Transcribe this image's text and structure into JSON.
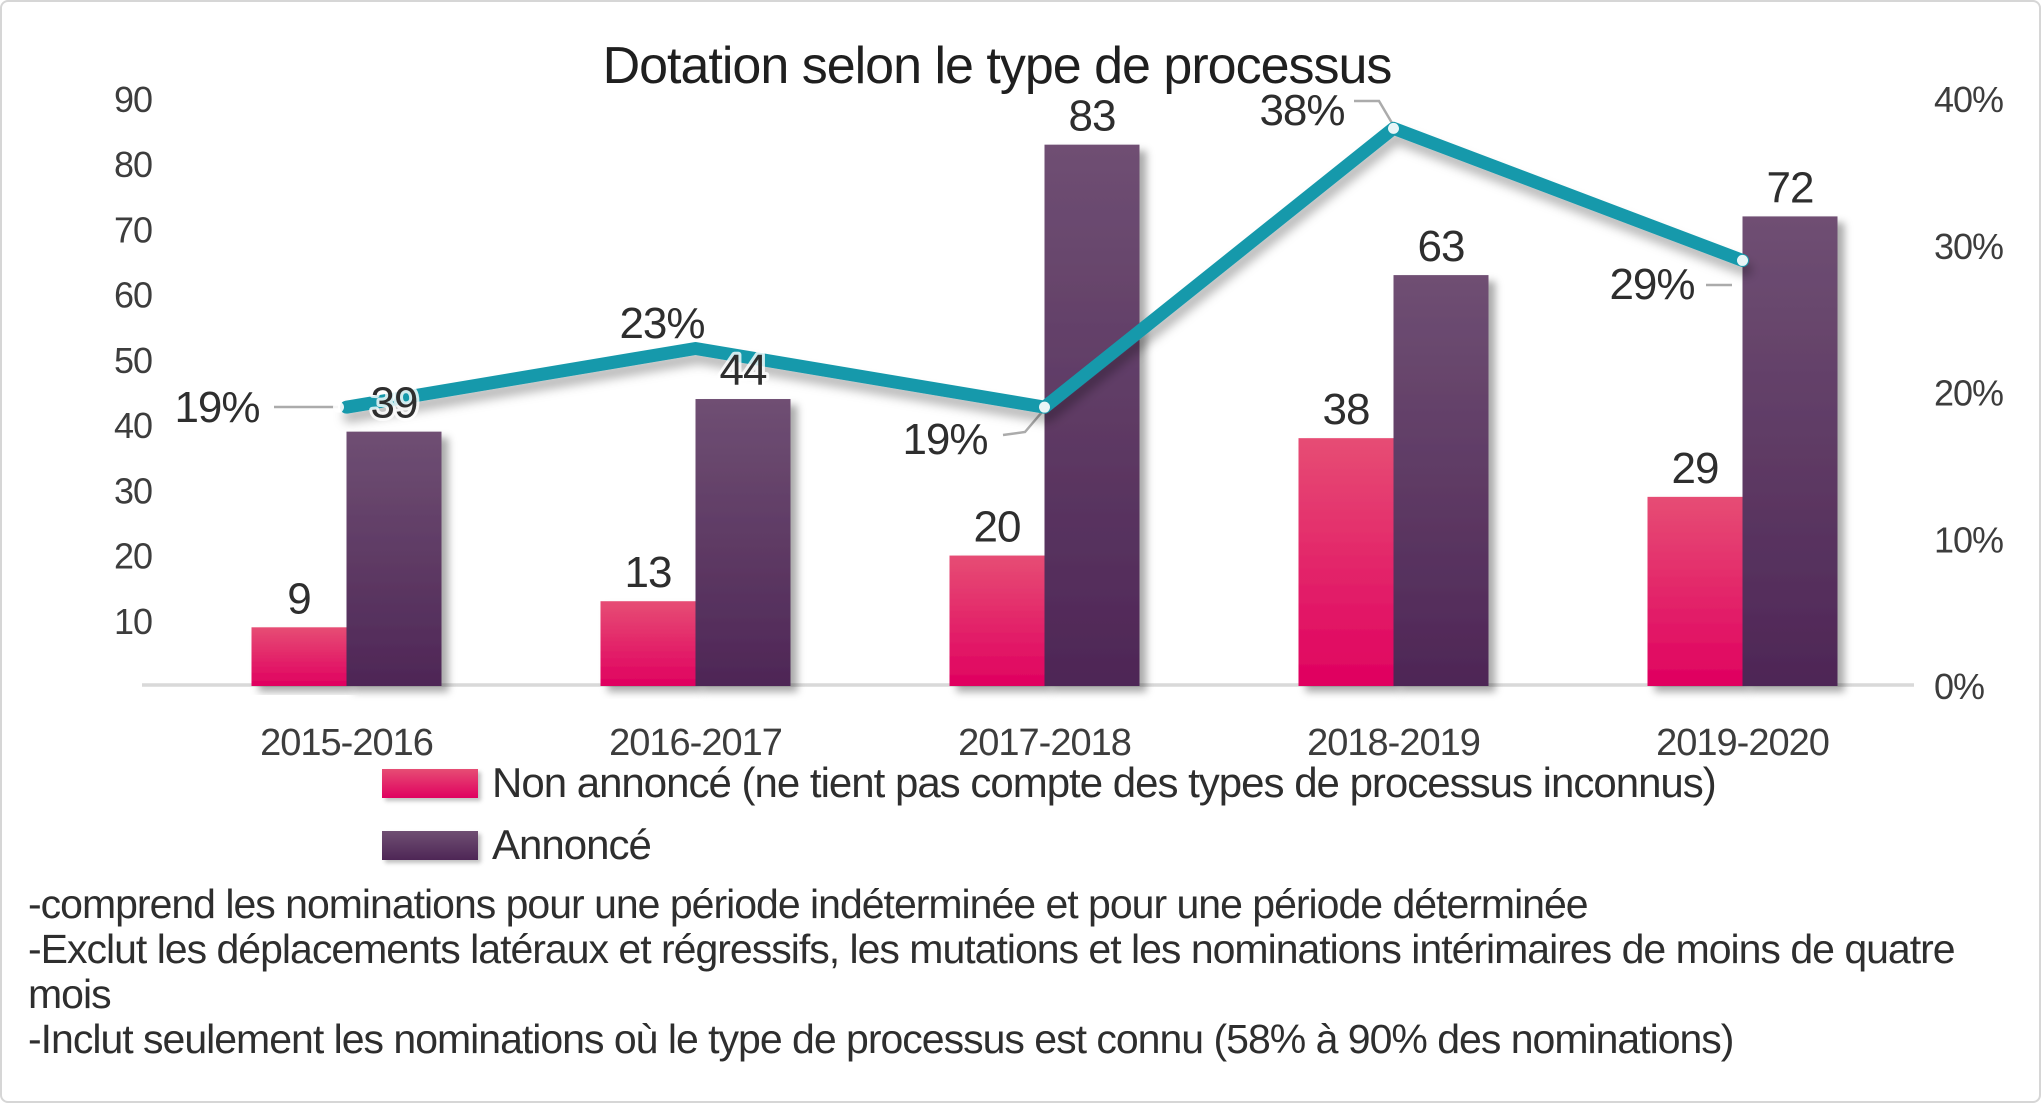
{
  "chart_data": {
    "type": "combo-bar-line",
    "title": "Dotation selon le type de processus",
    "categories": [
      "2015-2016",
      "2016-2017",
      "2017-2018",
      "2018-2019",
      "2019-2020"
    ],
    "series": [
      {
        "type": "bar",
        "axis": "left",
        "name": "Non annoncé (ne tient pas compte des types de processus inconnus)",
        "values": [
          9,
          13,
          20,
          38,
          29
        ],
        "data_labels": [
          "9",
          "13",
          "20",
          "38",
          "29"
        ],
        "color_top": "#E64D74",
        "color_bottom": "#E00060"
      },
      {
        "type": "bar",
        "axis": "left",
        "name": "Annoncé",
        "values": [
          39,
          44,
          83,
          63,
          72
        ],
        "data_labels": [
          "39",
          "44",
          "83",
          "63",
          "72"
        ],
        "color_top": "#6F4F73",
        "color_bottom": "#4E2656"
      },
      {
        "type": "line",
        "axis": "right",
        "values": [
          19,
          23,
          19,
          38,
          29
        ],
        "data_labels": [
          "19%",
          "23%",
          "19%",
          "38%",
          "29%"
        ],
        "color": "#1899AB"
      }
    ],
    "left_axis": {
      "min": 0,
      "max": 90,
      "tick_values": [
        90,
        80,
        70,
        60,
        50,
        40,
        30,
        20,
        10
      ],
      "tick_labels": [
        "90",
        "80",
        "70",
        "60",
        "50",
        "40",
        "30",
        "20",
        "10"
      ]
    },
    "right_axis": {
      "min": 0,
      "max": 40,
      "tick_values": [
        40,
        30,
        20,
        10,
        0
      ],
      "tick_labels": [
        "40%",
        "30%",
        "20%",
        "10%",
        "0%"
      ]
    },
    "grid": false,
    "legend_position": "bottom-left"
  },
  "footnotes": [
    "-comprend les nominations pour une période indéterminée et pour une période déterminée",
    "-Exclut les déplacements latéraux et régressifs, les mutations et les nominations intérimaires de moins de quatre mois",
    "-Inclut seulement les nominations où le type de processus est connu (58% à 90% des nominations)"
  ],
  "colors": {
    "axis_line": "#D9D9D9",
    "leader_line": "#ABABAB",
    "text": "#2E2E2E"
  }
}
